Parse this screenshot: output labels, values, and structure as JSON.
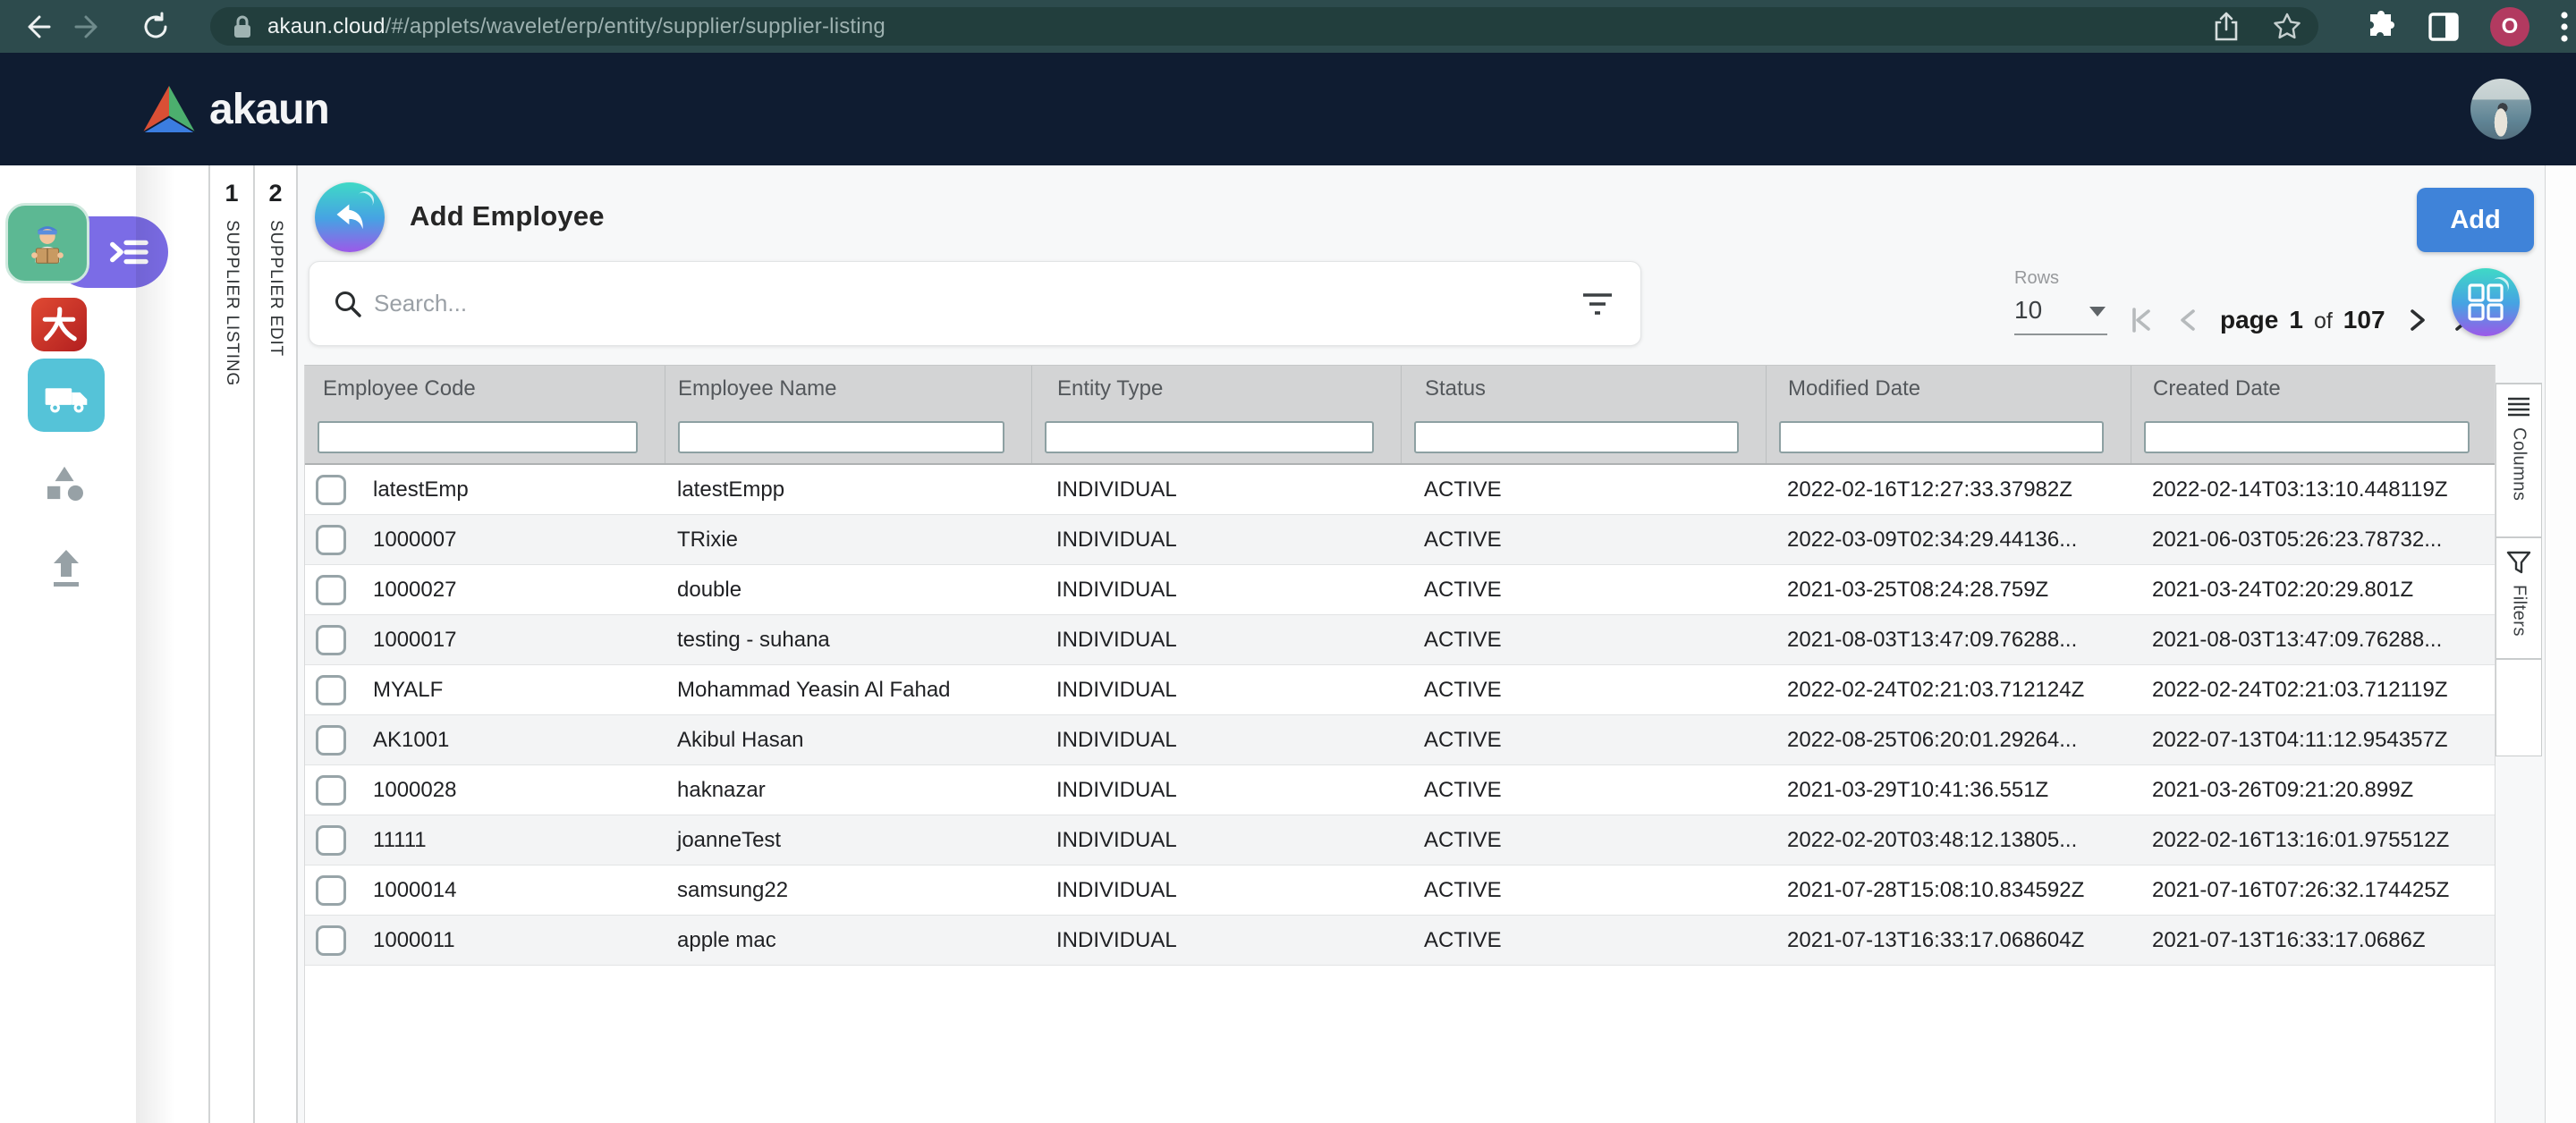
{
  "browser": {
    "url_host": "akaun.cloud",
    "url_path": "/#/applets/wavelet/erp/entity/supplier/supplier-listing",
    "profile_initial": "O"
  },
  "app_header": {
    "brand": "akaun"
  },
  "sidebar": {
    "applets": [
      {
        "name": "supplier-applet-active"
      },
      {
        "name": "dahua-applet"
      },
      {
        "name": "logistics-applet"
      },
      {
        "name": "shapes-applet"
      },
      {
        "name": "upload-applet"
      }
    ]
  },
  "workspace_tabs": [
    {
      "number": "1",
      "label": "SUPPLIER LISTING"
    },
    {
      "number": "2",
      "label": "SUPPLIER EDIT"
    }
  ],
  "page": {
    "title": "Add Employee",
    "add_button": "Add"
  },
  "toolbar": {
    "search_placeholder": "Search...",
    "rows_label": "Rows",
    "rows_value": "10",
    "pager": {
      "page_word": "page",
      "current": "1",
      "of_word": "of",
      "total": "107"
    }
  },
  "table": {
    "columns": [
      "Employee Code",
      "Employee Name",
      "Entity Type",
      "Status",
      "Modified Date",
      "Created Date"
    ],
    "rows": [
      [
        "latestEmp",
        "latestEmpp",
        "INDIVIDUAL",
        "ACTIVE",
        "2022-02-16T12:27:33.37982Z",
        "2022-02-14T03:13:10.448119Z"
      ],
      [
        "1000007",
        "TRixie",
        "INDIVIDUAL",
        "ACTIVE",
        "2022-03-09T02:34:29.44136...",
        "2021-06-03T05:26:23.78732..."
      ],
      [
        "1000027",
        "double",
        "INDIVIDUAL",
        "ACTIVE",
        "2021-03-25T08:24:28.759Z",
        "2021-03-24T02:20:29.801Z"
      ],
      [
        "1000017",
        "testing - suhana",
        "INDIVIDUAL",
        "ACTIVE",
        "2021-08-03T13:47:09.76288...",
        "2021-08-03T13:47:09.76288..."
      ],
      [
        "MYALF",
        "Mohammad Yeasin Al Fahad",
        "INDIVIDUAL",
        "ACTIVE",
        "2022-02-24T02:21:03.712124Z",
        "2022-02-24T02:21:03.712119Z"
      ],
      [
        "AK1001",
        "Akibul Hasan",
        "INDIVIDUAL",
        "ACTIVE",
        "2022-08-25T06:20:01.29264...",
        "2022-07-13T04:11:12.954357Z"
      ],
      [
        "1000028",
        "haknazar",
        "INDIVIDUAL",
        "ACTIVE",
        "2021-03-29T10:41:36.551Z",
        "2021-03-26T09:21:20.899Z"
      ],
      [
        "11111",
        "joanneTest",
        "INDIVIDUAL",
        "ACTIVE",
        "2022-02-20T03:48:12.13805...",
        "2022-02-16T13:16:01.975512Z"
      ],
      [
        "1000014",
        "samsung22",
        "INDIVIDUAL",
        "ACTIVE",
        "2021-07-28T15:08:10.834592Z",
        "2021-07-16T07:26:32.174425Z"
      ],
      [
        "1000011",
        "apple mac",
        "INDIVIDUAL",
        "ACTIVE",
        "2021-07-13T16:33:17.068604Z",
        "2021-07-13T16:33:17.0686Z"
      ]
    ]
  },
  "side_panel_tabs": [
    {
      "label": "Columns"
    },
    {
      "label": "Filters"
    }
  ],
  "colors": {
    "browser_bar": "#2d4b4d",
    "app_header": "#0f1c31",
    "accent_blue": "#3f83d9",
    "applet_purple": "#7b6ce6",
    "applet_green": "#5cb893",
    "applet_cyan": "#55c3d8",
    "gradient_top": "#3fd9c6",
    "gradient_mid": "#46a3e3",
    "gradient_bottom": "#9c59e8",
    "table_header_bg": "#d3d4d5"
  }
}
